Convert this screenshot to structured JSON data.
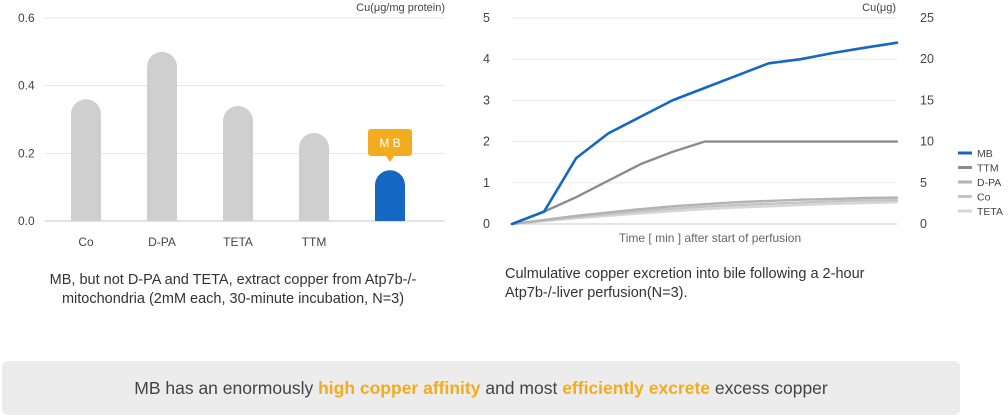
{
  "charts": {
    "left": {
      "unit_label": "Cu(μg/mg protein)",
      "highlight_label": "M B"
    },
    "right": {
      "unit_label": "Cu(μg)",
      "xlabel": "Time [ min ] after start of perfusion"
    }
  },
  "captions": {
    "left_line1": "MB, but not D-PA and TETA, extract copper from  Atp7b-/-",
    "left_line2": "mitochondria (2mM each, 30-minute incubation, N=3)",
    "right_line1": "Culmulative copper excretion into bile following a 2-hour",
    "right_line2": "Atp7b-/-liver perfusion(N=3)."
  },
  "banner": {
    "part1": "MB has an enormously ",
    "highlight1": "high copper affinity",
    "part2": " and most ",
    "highlight2": "efficiently excrete",
    "part3": " excess copper"
  },
  "colors": {
    "accent_blue": "#1468c2",
    "highlight_orange": "#f2ac1e",
    "bar_gray": "#cfcfcf"
  },
  "chart_data": [
    {
      "type": "bar",
      "title": "",
      "ylabel": "Cu(μg/mg protein)",
      "categories": [
        "Co",
        "D-PA",
        "TETA",
        "TTM",
        ""
      ],
      "values": [
        0.36,
        0.5,
        0.34,
        0.26,
        0.15
      ],
      "bar_colors": [
        "#cfcfcf",
        "#cfcfcf",
        "#cfcfcf",
        "#cfcfcf",
        "#1468c2"
      ],
      "yticks": [
        "0.0",
        "0.2",
        "0.4",
        "0.6"
      ],
      "ylim": [
        0,
        0.6
      ],
      "grid": true
    },
    {
      "type": "line",
      "title": "",
      "xlabel": "Time [ min ] after start of perfusion",
      "ylabel_right": "Cu(μg)",
      "ylim_left": [
        0,
        5
      ],
      "ylim_right": [
        0,
        25
      ],
      "yticks_left": [
        "0",
        "1",
        "2",
        "3",
        "4",
        "5"
      ],
      "yticks_right": [
        "0",
        "5",
        "10",
        "15",
        "20",
        "25"
      ],
      "x": [
        0,
        10,
        20,
        30,
        40,
        50,
        60,
        70,
        80,
        90,
        100,
        110,
        120
      ],
      "series": [
        {
          "name": "MB",
          "color": "#1468c2",
          "values": [
            0,
            0.3,
            1.6,
            2.2,
            2.6,
            3.0,
            3.3,
            3.6,
            3.9,
            4.0,
            4.15,
            4.28,
            4.4
          ]
        },
        {
          "name": "TTM",
          "color": "#8c8c8c",
          "values": [
            0,
            0.3,
            0.65,
            1.05,
            1.45,
            1.75,
            2.0,
            2.0,
            2.0,
            2.0,
            2.0,
            2.0,
            2.0
          ]
        },
        {
          "name": "D-PA",
          "color": "#b3b3b3",
          "values": [
            0,
            0.1,
            0.2,
            0.28,
            0.36,
            0.43,
            0.48,
            0.53,
            0.56,
            0.59,
            0.61,
            0.63,
            0.64
          ]
        },
        {
          "name": "Co",
          "color": "#c4c4c4",
          "values": [
            0,
            0.09,
            0.17,
            0.24,
            0.31,
            0.37,
            0.42,
            0.46,
            0.49,
            0.52,
            0.55,
            0.57,
            0.58
          ]
        },
        {
          "name": "TETA",
          "color": "#d6d6d6",
          "values": [
            0,
            0.07,
            0.14,
            0.2,
            0.26,
            0.31,
            0.36,
            0.4,
            0.43,
            0.46,
            0.49,
            0.51,
            0.53
          ]
        }
      ],
      "legend_position": "right"
    }
  ]
}
